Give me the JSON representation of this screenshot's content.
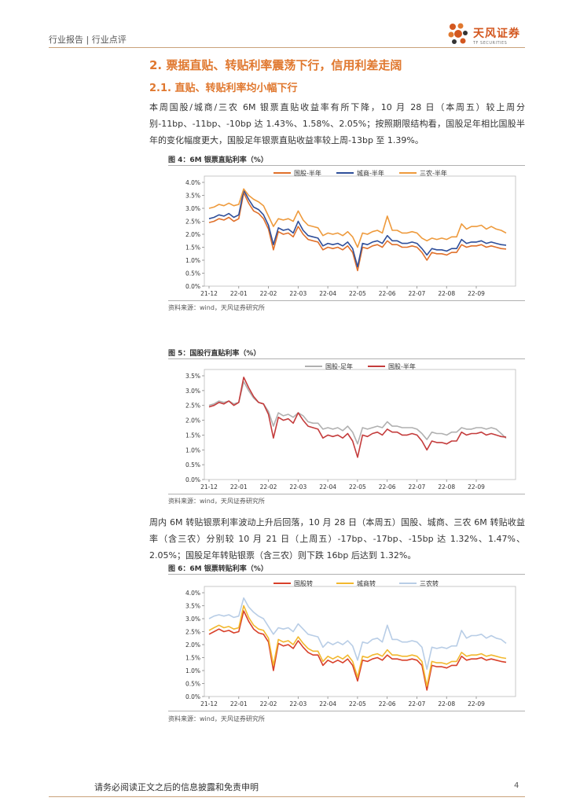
{
  "header": {
    "left": "行业报告 | 行业点评",
    "logo_name": "天风证券",
    "logo_en": "TF SECURITIES"
  },
  "section": {
    "h2": "2. 票据直贴、转贴利率震荡下行，信用利差走阔",
    "h3": "2.1. 直贴、转贴利率均小幅下行"
  },
  "paragraphs": {
    "p1": "本周国股/城商/三农 6M 银票直贴收益率有所下降，10 月 28 日（本周五）较上周分别-11bp、-11bp、-10bp 达 1.43%、1.58%、2.05%；按照期限结构看，国股足年相比国股半年的变化幅度更大，国股足年银票直贴收益率较上周-13bp 至 1.39%。",
    "p2": "周内 6M 转贴银票利率波动上升后回落，10 月 28 日（本周五）国股、城商、三农 6M 转贴收益率（含三农）分别较 10 月 21 日（上周五）-17bp、-17bp、-15bp 达 1.32%、1.47%、2.05%；国股足年转贴银票（含三农）则下跌 16bp 后达到 1.32%。"
  },
  "figures": {
    "fig4": {
      "title": "图 4：6M 银票直贴利率（%）",
      "source": "资料来源：wind，天风证券研究所"
    },
    "fig5": {
      "title": "图 5：国股行直贴利率（%）",
      "source": "资料来源：wind，天风证券研究所"
    },
    "fig6": {
      "title": "图 6：6M 银票转贴利率（%）",
      "source": "资料来源：wind，天风证券研究所"
    }
  },
  "chart_data": [
    {
      "id": "fig4",
      "type": "line",
      "title": "6M 银票直贴利率（%）",
      "ylim": [
        0,
        4
      ],
      "yticks": [
        "0.0%",
        "0.5%",
        "1.0%",
        "1.5%",
        "2.0%",
        "2.5%",
        "3.0%",
        "3.5%",
        "4.0%"
      ],
      "x_ticks": [
        "21-12",
        "22-01",
        "22-02",
        "22-03",
        "22-04",
        "22-05",
        "22-06",
        "22-07",
        "22-08",
        "22-09"
      ],
      "legend": "top",
      "series": [
        {
          "name": "国股-半年",
          "color": "#e0702a",
          "values": [
            2.45,
            2.5,
            2.6,
            2.55,
            2.65,
            2.5,
            2.6,
            3.6,
            3.2,
            2.9,
            2.8,
            2.6,
            2.2,
            1.4,
            2.1,
            2.0,
            2.05,
            1.9,
            2.3,
            2.0,
            1.8,
            1.75,
            1.7,
            1.4,
            1.5,
            1.45,
            1.5,
            1.4,
            1.55,
            1.3,
            0.6,
            1.5,
            1.45,
            1.55,
            1.6,
            1.5,
            1.75,
            1.6,
            1.6,
            1.5,
            1.5,
            1.55,
            1.5,
            1.3,
            1.0,
            1.3,
            1.25,
            1.25,
            1.2,
            1.3,
            1.3,
            1.6,
            1.5,
            1.55,
            1.55,
            1.6,
            1.5,
            1.55,
            1.5,
            1.45,
            1.43
          ]
        },
        {
          "name": "城商-半年",
          "color": "#2f4f9a",
          "values": [
            2.6,
            2.65,
            2.75,
            2.7,
            2.8,
            2.65,
            2.75,
            3.7,
            3.35,
            3.05,
            2.95,
            2.75,
            2.35,
            1.6,
            2.25,
            2.15,
            2.2,
            2.05,
            2.5,
            2.15,
            1.95,
            1.9,
            1.85,
            1.55,
            1.65,
            1.6,
            1.65,
            1.55,
            1.7,
            1.45,
            0.75,
            1.65,
            1.6,
            1.7,
            1.75,
            1.65,
            1.95,
            1.75,
            1.75,
            1.65,
            1.65,
            1.7,
            1.65,
            1.45,
            1.2,
            1.45,
            1.4,
            1.4,
            1.35,
            1.45,
            1.45,
            1.8,
            1.65,
            1.7,
            1.7,
            1.75,
            1.65,
            1.7,
            1.65,
            1.6,
            1.58
          ]
        },
        {
          "name": "三农-半年",
          "color": "#ee9a3c",
          "values": [
            3.0,
            3.05,
            3.15,
            3.1,
            3.2,
            3.1,
            3.15,
            3.75,
            3.5,
            3.35,
            3.25,
            3.1,
            2.7,
            2.3,
            2.6,
            2.55,
            2.6,
            2.5,
            2.9,
            2.55,
            2.35,
            2.3,
            2.25,
            1.95,
            2.05,
            2.0,
            2.05,
            1.95,
            2.1,
            1.9,
            1.5,
            2.05,
            2.0,
            2.1,
            2.15,
            2.05,
            2.7,
            2.15,
            2.15,
            2.05,
            2.05,
            2.1,
            2.05,
            1.85,
            1.75,
            1.85,
            1.8,
            1.85,
            1.8,
            1.9,
            1.9,
            2.4,
            2.2,
            2.3,
            2.3,
            2.35,
            2.2,
            2.3,
            2.2,
            2.15,
            2.05
          ]
        }
      ]
    },
    {
      "id": "fig5",
      "type": "line",
      "title": "国股行直贴利率（%）",
      "ylim": [
        0,
        3.5
      ],
      "yticks": [
        "0.0%",
        "0.5%",
        "1.0%",
        "1.5%",
        "2.0%",
        "2.5%",
        "3.0%",
        "3.5%"
      ],
      "x_ticks": [
        "21-12",
        "22-01",
        "22-02",
        "22-03",
        "22-04",
        "22-05",
        "22-06",
        "22-07",
        "22-08",
        "22-09"
      ],
      "legend": "top",
      "series": [
        {
          "name": "国股-足年",
          "color": "#b0b0b0",
          "values": [
            2.5,
            2.55,
            2.65,
            2.6,
            2.65,
            2.55,
            2.6,
            3.3,
            3.0,
            2.75,
            2.6,
            2.55,
            2.3,
            1.8,
            2.25,
            2.15,
            2.2,
            2.1,
            2.25,
            2.15,
            1.95,
            1.9,
            1.9,
            1.7,
            1.75,
            1.7,
            1.75,
            1.65,
            1.8,
            1.6,
            1.2,
            1.75,
            1.7,
            1.75,
            1.8,
            1.75,
            1.95,
            1.8,
            1.8,
            1.75,
            1.75,
            1.75,
            1.7,
            1.55,
            1.35,
            1.6,
            1.55,
            1.55,
            1.5,
            1.6,
            1.6,
            1.75,
            1.7,
            1.7,
            1.75,
            1.75,
            1.7,
            1.75,
            1.7,
            1.55,
            1.39
          ]
        },
        {
          "name": "国股-半年",
          "color": "#c43c3c",
          "values": [
            2.45,
            2.5,
            2.6,
            2.55,
            2.65,
            2.5,
            2.6,
            3.45,
            3.1,
            2.8,
            2.6,
            2.55,
            2.2,
            1.4,
            2.1,
            2.0,
            2.05,
            1.9,
            2.25,
            2.0,
            1.8,
            1.75,
            1.7,
            1.4,
            1.5,
            1.45,
            1.5,
            1.4,
            1.55,
            1.3,
            0.75,
            1.5,
            1.45,
            1.55,
            1.6,
            1.5,
            1.7,
            1.6,
            1.6,
            1.5,
            1.5,
            1.55,
            1.5,
            1.3,
            1.0,
            1.3,
            1.25,
            1.25,
            1.2,
            1.3,
            1.3,
            1.6,
            1.5,
            1.55,
            1.55,
            1.6,
            1.5,
            1.55,
            1.5,
            1.45,
            1.43
          ]
        }
      ]
    },
    {
      "id": "fig6",
      "type": "line",
      "title": "6M 银票转贴利率（%）",
      "ylim": [
        0,
        4
      ],
      "yticks": [
        "0.0%",
        "0.5%",
        "1.0%",
        "1.5%",
        "2.0%",
        "2.5%",
        "3.0%",
        "3.5%",
        "4.0%"
      ],
      "x_ticks": [
        "21-12",
        "22-01",
        "22-02",
        "22-03",
        "22-04",
        "22-05",
        "22-06",
        "22-07",
        "22-08",
        "22-09"
      ],
      "legend": "top",
      "series": [
        {
          "name": "国股转",
          "color": "#d8402a",
          "values": [
            2.4,
            2.5,
            2.6,
            2.5,
            2.55,
            2.45,
            2.5,
            3.3,
            2.9,
            2.6,
            2.45,
            2.4,
            2.1,
            1.0,
            2.05,
            1.95,
            2.0,
            1.85,
            2.15,
            1.9,
            1.7,
            1.6,
            1.6,
            1.2,
            1.4,
            1.3,
            1.4,
            1.3,
            1.45,
            1.2,
            0.6,
            1.4,
            1.35,
            1.45,
            1.5,
            1.4,
            1.6,
            1.45,
            1.45,
            1.4,
            1.4,
            1.45,
            1.4,
            1.2,
            0.25,
            1.2,
            1.15,
            1.15,
            1.1,
            1.2,
            1.2,
            1.55,
            1.4,
            1.45,
            1.45,
            1.5,
            1.4,
            1.45,
            1.4,
            1.35,
            1.32
          ]
        },
        {
          "name": "城商转",
          "color": "#f2b82e",
          "values": [
            2.55,
            2.65,
            2.75,
            2.65,
            2.7,
            2.6,
            2.65,
            3.5,
            3.05,
            2.75,
            2.6,
            2.55,
            2.25,
            1.2,
            2.2,
            2.1,
            2.15,
            2.0,
            2.3,
            2.05,
            1.85,
            1.75,
            1.75,
            1.35,
            1.55,
            1.45,
            1.55,
            1.45,
            1.6,
            1.35,
            0.75,
            1.55,
            1.5,
            1.6,
            1.65,
            1.55,
            1.8,
            1.6,
            1.6,
            1.55,
            1.55,
            1.6,
            1.55,
            1.35,
            0.4,
            1.35,
            1.3,
            1.3,
            1.25,
            1.35,
            1.35,
            1.7,
            1.55,
            1.6,
            1.6,
            1.65,
            1.55,
            1.6,
            1.55,
            1.5,
            1.47
          ]
        },
        {
          "name": "三农转",
          "color": "#b8cde6",
          "values": [
            3.0,
            3.1,
            3.15,
            3.1,
            3.15,
            3.05,
            3.1,
            3.8,
            3.45,
            3.25,
            3.1,
            3.0,
            2.7,
            2.4,
            2.65,
            2.6,
            2.65,
            2.5,
            2.8,
            2.6,
            2.4,
            2.35,
            2.3,
            1.9,
            2.1,
            2.0,
            2.1,
            2.0,
            2.15,
            1.95,
            1.4,
            2.1,
            2.05,
            2.2,
            2.25,
            2.1,
            2.75,
            2.2,
            2.2,
            2.1,
            2.1,
            2.15,
            2.1,
            1.9,
            1.05,
            1.9,
            1.85,
            1.9,
            1.85,
            1.95,
            1.95,
            2.55,
            2.25,
            2.35,
            2.35,
            2.4,
            2.25,
            2.35,
            2.25,
            2.2,
            2.05
          ]
        }
      ]
    }
  ],
  "footer": {
    "disclaimer": "请务必阅读正文之后的信息披露和免责申明",
    "page": "4"
  }
}
